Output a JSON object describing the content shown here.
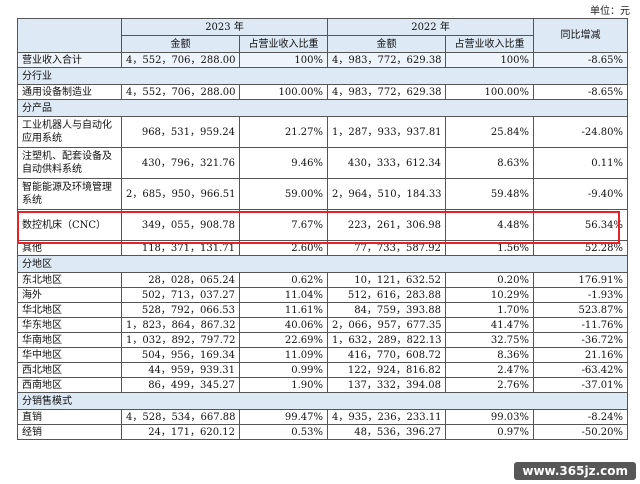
{
  "unit_label": "单位：元",
  "header": {
    "year_2023": "2023 年",
    "year_2022": "2022 年",
    "yoy": "同比增减",
    "amount": "金额",
    "ratio": "占营业收入比重"
  },
  "total": {
    "label": "营业收入合计",
    "a23": "4，552，706，288.00",
    "p23": "100%",
    "a22": "4，983，772，629.38",
    "p22": "100%",
    "yoy": "-8.65%"
  },
  "sections": [
    {
      "title": "分行业",
      "rows": [
        {
          "label": "通用设备制造业",
          "a23": "4，552，706，288.00",
          "p23": "100.00%",
          "a22": "4，983，772，629.38",
          "p22": "100.00%",
          "yoy": "-8.65%"
        }
      ]
    },
    {
      "title": "分产品",
      "rows": [
        {
          "label": "工业机器人与自动化应用系统",
          "a23": "968，531，959.24",
          "p23": "21.27%",
          "a22": "1，287，933，937.81",
          "p22": "25.84%",
          "yoy": "-24.80%"
        },
        {
          "label": "注塑机、配套设备及自动供料系统",
          "a23": "430，796，321.76",
          "p23": "9.46%",
          "a22": "430，333，612.34",
          "p22": "8.63%",
          "yoy": "0.11%"
        },
        {
          "label": "智能能源及环境管理系统",
          "a23": "2，685，950，966.51",
          "p23": "59.00%",
          "a22": "2，964，510，184.33",
          "p22": "59.48%",
          "yoy": "-9.40%"
        },
        {
          "label": "数控机床（CNC）",
          "a23": "349，055，908.78",
          "p23": "7.67%",
          "a22": "223，261，306.98",
          "p22": "4.48%",
          "yoy": "56.34%"
        },
        {
          "label": "其他",
          "a23": "118，371，131.71",
          "p23": "2.60%",
          "a22": "77，733，587.92",
          "p22": "1.56%",
          "yoy": "52.28%"
        }
      ]
    },
    {
      "title": "分地区",
      "rows": [
        {
          "label": "东北地区",
          "a23": "28，028，065.24",
          "p23": "0.62%",
          "a22": "10，121，632.52",
          "p22": "0.20%",
          "yoy": "176.91%"
        },
        {
          "label": "海外",
          "a23": "502，713，037.27",
          "p23": "11.04%",
          "a22": "512，616，283.88",
          "p22": "10.29%",
          "yoy": "-1.93%"
        },
        {
          "label": "华北地区",
          "a23": "528，792，066.53",
          "p23": "11.61%",
          "a22": "84，759，393.88",
          "p22": "1.70%",
          "yoy": "523.87%"
        },
        {
          "label": "华东地区",
          "a23": "1，823，864，867.32",
          "p23": "40.06%",
          "a22": "2，066，957，677.35",
          "p22": "41.47%",
          "yoy": "-11.76%"
        },
        {
          "label": "华南地区",
          "a23": "1，032，892，797.72",
          "p23": "22.69%",
          "a22": "1，632，289，822.13",
          "p22": "32.75%",
          "yoy": "-36.72%"
        },
        {
          "label": "华中地区",
          "a23": "504，956，169.34",
          "p23": "11.09%",
          "a22": "416，770，608.72",
          "p22": "8.36%",
          "yoy": "21.16%"
        },
        {
          "label": "西北地区",
          "a23": "44，959，939.31",
          "p23": "0.99%",
          "a22": "122，924，816.82",
          "p22": "2.47%",
          "yoy": "-63.42%"
        },
        {
          "label": "西南地区",
          "a23": "86，499，345.27",
          "p23": "1.90%",
          "a22": "137，332，394.08",
          "p22": "2.76%",
          "yoy": "-37.01%"
        }
      ]
    },
    {
      "title": "分销售模式",
      "rows": [
        {
          "label": "直销",
          "a23": "4，528，534，667.88",
          "p23": "99.47%",
          "a22": "4，935，236，233.11",
          "p22": "99.03%",
          "yoy": "-8.24%"
        },
        {
          "label": "经销",
          "a23": "24，171，620.12",
          "p23": "0.53%",
          "a22": "48，536，396.27",
          "p22": "0.97%",
          "yoy": "-50.20%"
        }
      ]
    }
  ],
  "watermark": "www.365jz.com"
}
